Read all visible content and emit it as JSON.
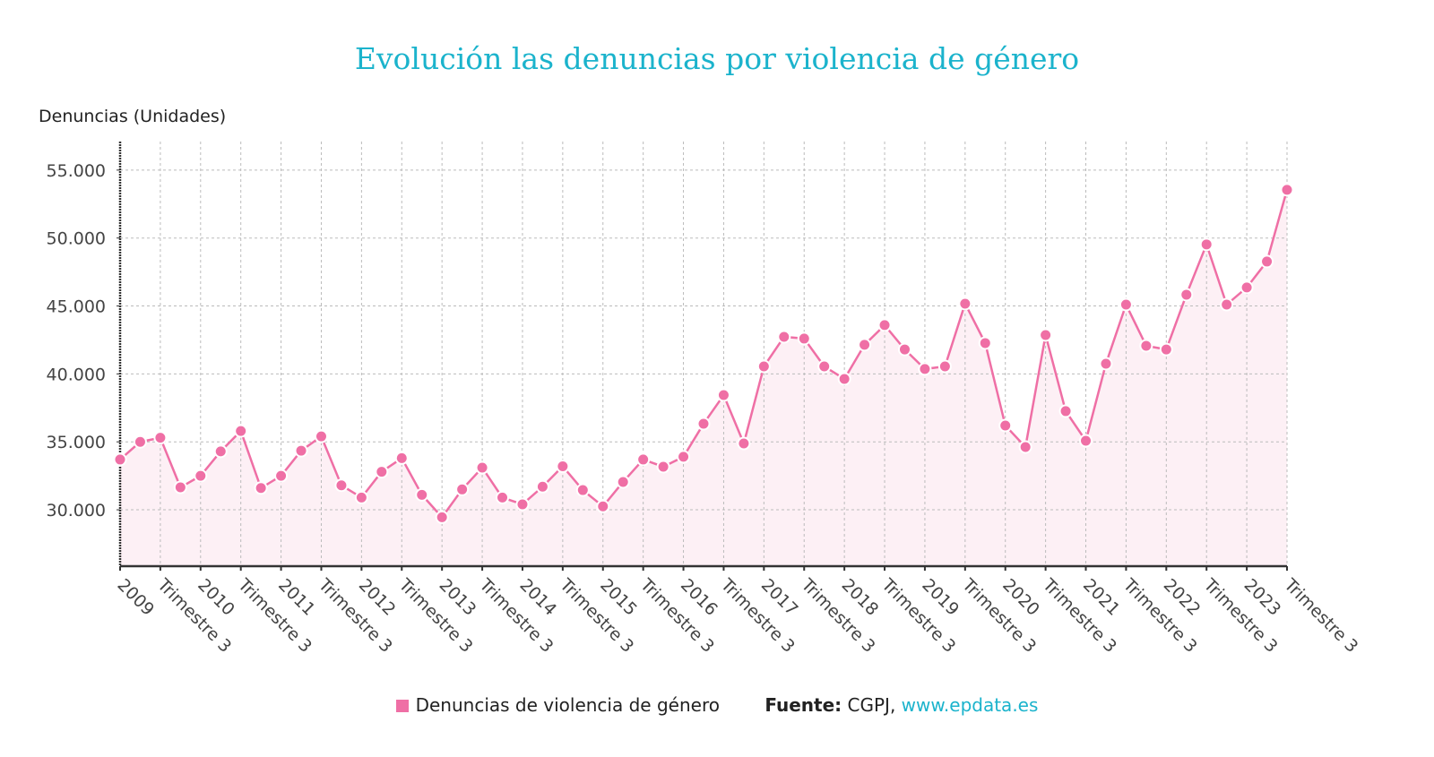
{
  "chart_data": {
    "type": "area",
    "title": "Evolución las denuncias por violencia de género",
    "ylabel": "Denuncias (Unidades)",
    "xlabel": "",
    "ylim": [
      25850,
      57100
    ],
    "yticks": [
      30000,
      35000,
      40000,
      45000,
      50000,
      55000
    ],
    "ytick_labels": [
      "30.000",
      "35.000",
      "40.000",
      "45.000",
      "50.000",
      "55.000"
    ],
    "xtick_labels": [
      "2009",
      "Trimestre 3",
      "2010",
      "Trimestre 3",
      "2011",
      "Trimestre 3",
      "2012",
      "Trimestre 3",
      "2013",
      "Trimestre 3",
      "2014",
      "Trimestre 3",
      "2015",
      "Trimestre 3",
      "2016",
      "Trimestre 3",
      "2017",
      "Trimestre 3",
      "2018",
      "Trimestre 3",
      "2019",
      "Trimestre 3",
      "2020",
      "Trimestre 3",
      "2021",
      "Trimestre 3",
      "2022",
      "Trimestre 3",
      "2023",
      "Trimestre 3"
    ],
    "grid": true,
    "legend_position": "bottom",
    "color": "#ef6fa5",
    "fill_color": "#fdf0f5",
    "series": [
      {
        "name": "Denuncias de violencia de género",
        "x": [
          "2009 T1",
          "2009 T2",
          "2009 T3",
          "2009 T4",
          "2010 T1",
          "2010 T2",
          "2010 T3",
          "2010 T4",
          "2011 T1",
          "2011 T2",
          "2011 T3",
          "2011 T4",
          "2012 T1",
          "2012 T2",
          "2012 T3",
          "2012 T4",
          "2013 T1",
          "2013 T2",
          "2013 T3",
          "2013 T4",
          "2014 T1",
          "2014 T2",
          "2014 T3",
          "2014 T4",
          "2015 T1",
          "2015 T2",
          "2015 T3",
          "2015 T4",
          "2016 T1",
          "2016 T2",
          "2016 T3",
          "2016 T4",
          "2017 T1",
          "2017 T2",
          "2017 T3",
          "2017 T4",
          "2018 T1",
          "2018 T2",
          "2018 T3",
          "2018 T4",
          "2019 T1",
          "2019 T2",
          "2019 T3",
          "2019 T4",
          "2020 T1",
          "2020 T2",
          "2020 T3",
          "2020 T4",
          "2021 T1",
          "2021 T2",
          "2021 T3",
          "2021 T4",
          "2022 T1",
          "2022 T2",
          "2022 T3",
          "2022 T4",
          "2023 T1",
          "2023 T2",
          "2023 T3"
        ],
        "values": [
          33700,
          35000,
          35300,
          31650,
          32500,
          34300,
          35800,
          31600,
          32500,
          34350,
          35400,
          31800,
          30900,
          32800,
          33800,
          31100,
          29450,
          31500,
          33100,
          30900,
          30400,
          31700,
          33200,
          31450,
          30250,
          32050,
          33700,
          33170,
          33900,
          36330,
          38440,
          34880,
          40550,
          42730,
          42600,
          40550,
          39630,
          42140,
          43590,
          41800,
          40360,
          40550,
          45170,
          42270,
          36200,
          34620,
          42860,
          37260,
          35080,
          40750,
          45100,
          42070,
          41800,
          45830,
          49530,
          45100,
          46360,
          48270,
          53550
        ]
      }
    ]
  },
  "legend": {
    "series_label": "Denuncias de violencia de género",
    "source_label": "Fuente:",
    "source_value": "CGPJ,",
    "source_link": "www.epdata.es"
  }
}
